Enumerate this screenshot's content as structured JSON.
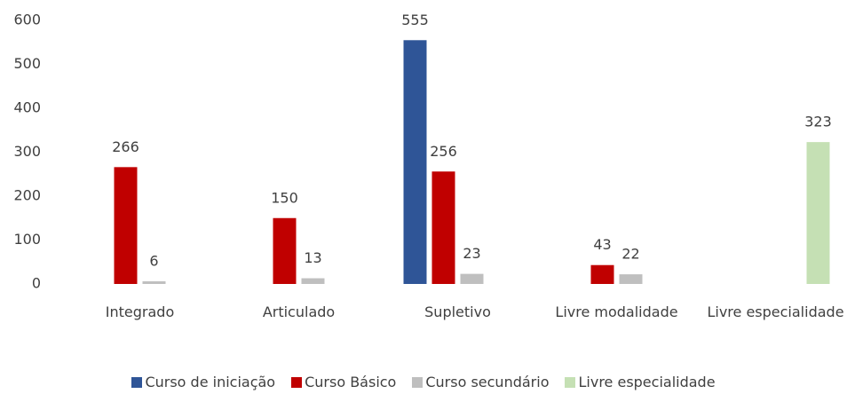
{
  "chart_data": {
    "type": "bar",
    "categories": [
      "Integrado",
      "Articulado",
      "Supletivo",
      "Livre modalidade",
      "Livre especialidade"
    ],
    "series": [
      {
        "name": "Curso de iniciação",
        "color": "#2f5597",
        "values": [
          null,
          null,
          555,
          null,
          null
        ]
      },
      {
        "name": "Curso Básico",
        "color": "#c00000",
        "values": [
          266,
          150,
          256,
          43,
          null
        ]
      },
      {
        "name": "Curso secundário",
        "color": "#bfbfbf",
        "values": [
          6,
          13,
          23,
          22,
          null
        ]
      },
      {
        "name": "Livre especialidade",
        "color": "#c5e0b4",
        "values": [
          null,
          null,
          null,
          null,
          323
        ]
      }
    ],
    "ylim": [
      0,
      600
    ],
    "yticks": [
      0,
      100,
      200,
      300,
      400,
      500,
      600
    ],
    "grid": false
  }
}
